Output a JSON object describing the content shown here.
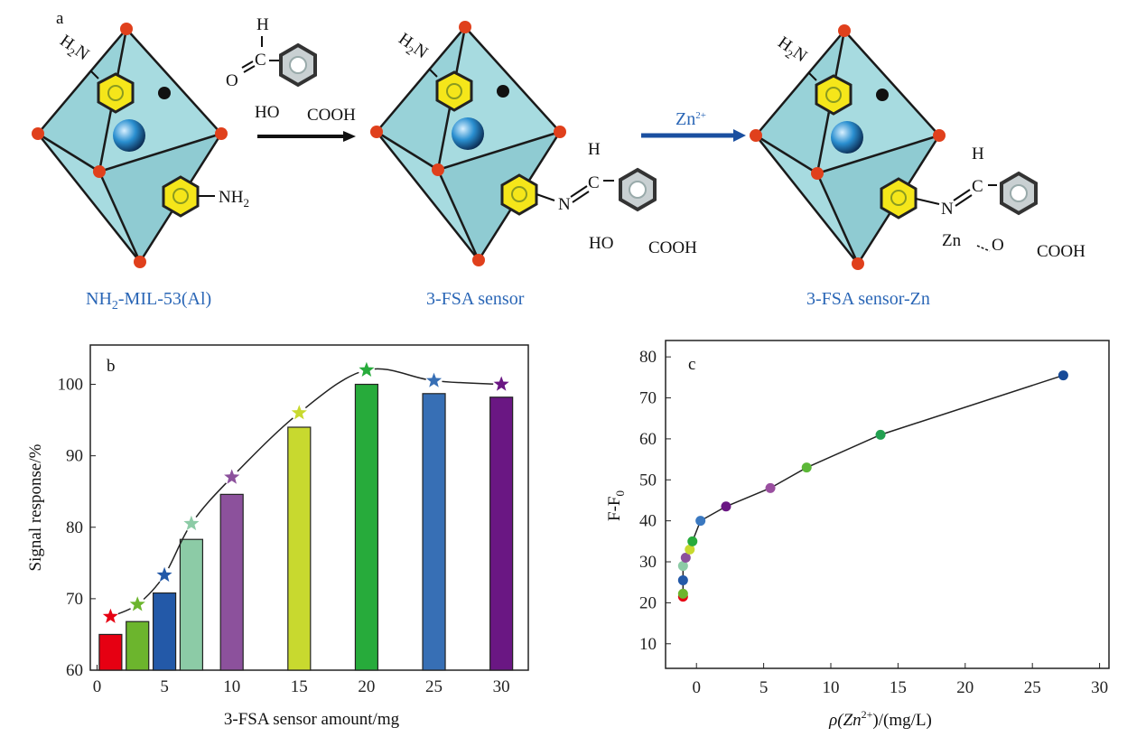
{
  "panel_a": {
    "label": "a",
    "structures": [
      {
        "caption_main": "NH",
        "caption_sub": "2",
        "caption_rest": "-MIL-53(Al)"
      },
      {
        "caption_main": "3-FSA sensor"
      },
      {
        "caption_main": "3-FSA sensor-Zn"
      }
    ],
    "reagent": {
      "h": "H",
      "c": "C",
      "o": "O",
      "ho": "HO",
      "cooh": "COOH"
    },
    "amine_top": {
      "main": "H",
      "sub": "2",
      "rest": "N"
    },
    "amine_side": {
      "main": "NH",
      "sub": "2"
    },
    "imine": {
      "n": "N",
      "c": "C",
      "h": "H",
      "ho": "HO",
      "cooh": "COOH"
    },
    "complex": {
      "n": "N",
      "c": "C",
      "h": "H",
      "zn": "Zn",
      "o": "O",
      "cooh": "COOH"
    },
    "arrow2_label_main": "Zn",
    "arrow2_label_sup": "2+",
    "colors": {
      "octahedron": "#a7dbe0",
      "node": "#e0401c",
      "ring": "#f5e61a",
      "caption": "#2a66b6",
      "arrow2": "#1a4fa0"
    }
  },
  "chart_data": [
    {
      "panel": "b",
      "type": "bar",
      "xlabel": "3-FSA sensor amount/mg",
      "ylabel": "Signal response/%",
      "x": [
        1,
        3,
        5,
        7,
        10,
        15,
        20,
        25,
        30
      ],
      "values": [
        65,
        66.8,
        70.8,
        78.3,
        84.6,
        94,
        100,
        98.7,
        98.2
      ],
      "star_values": [
        67.5,
        69.2,
        73.3,
        80.5,
        87,
        96,
        102,
        100.5,
        100
      ],
      "colors": [
        "#e60012",
        "#6cb52d",
        "#2359a8",
        "#8ccba6",
        "#8c519c",
        "#c8d92f",
        "#27ab3b",
        "#376fb5",
        "#6a1783"
      ],
      "xlim": [
        -0.5,
        32
      ],
      "ylim": [
        60,
        105.5
      ],
      "xticks": [
        "0",
        "5",
        "10",
        "15",
        "20",
        "25",
        "30"
      ],
      "yticks": [
        "60",
        "70",
        "80",
        "90",
        "100"
      ]
    },
    {
      "panel": "c",
      "type": "line",
      "xlabel_pre": "ρ(Zn",
      "xlabel_sup": "2+",
      "xlabel_post": ")/(mg/L)",
      "ylabel_main": "F-F",
      "ylabel_sub": "0",
      "x": [
        -1,
        -1,
        -1,
        -1,
        -0.8,
        -0.5,
        -0.3,
        0.3,
        2.2,
        5.5,
        8.2,
        13.7,
        27.3
      ],
      "y": [
        21.5,
        22.2,
        25.5,
        29,
        31,
        33,
        35,
        40,
        43.5,
        48,
        53,
        61,
        75.5
      ],
      "colors": [
        "#e60012",
        "#6cb52d",
        "#2359a8",
        "#8ccba6",
        "#8c519c",
        "#c8d92f",
        "#27ab3b",
        "#3a78c0",
        "#6a1783",
        "#9a4fa0",
        "#5cb838",
        "#22a050",
        "#164a98"
      ],
      "xlim": [
        -2.3,
        30.7
      ],
      "ylim": [
        4,
        84
      ],
      "xticks": [
        "0",
        "5",
        "10",
        "15",
        "20",
        "25",
        "30"
      ],
      "yticks": [
        "10",
        "20",
        "30",
        "40",
        "50",
        "60",
        "70",
        "80"
      ]
    }
  ]
}
